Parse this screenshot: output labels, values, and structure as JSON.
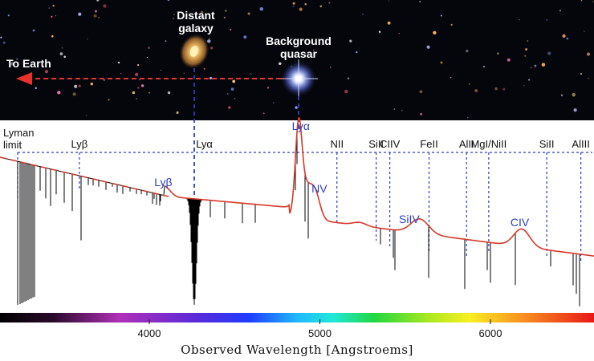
{
  "image_labels": {
    "to_earth": "To Earth",
    "galaxy_line1": "Distant",
    "galaxy_line2": "galaxy",
    "quasar_line1": "Background",
    "quasar_line2": "quasar"
  },
  "absorption_labels": [
    {
      "text": "Lyman",
      "wavelength": 3220
    },
    {
      "text": "limit",
      "wavelength": 3220
    },
    {
      "text": "Lyβ",
      "wavelength": 3590
    },
    {
      "text": "Lyα",
      "wavelength": 4255
    },
    {
      "text": "NII",
      "wavelength": 5100
    },
    {
      "text": "SiII",
      "wavelength": 5330
    },
    {
      "text": "CIIV",
      "wavelength": 5410
    },
    {
      "text": "FeII",
      "wavelength": 5640
    },
    {
      "text": "AlII",
      "wavelength": 5860
    },
    {
      "text": "MgI/NiII",
      "wavelength": 5990
    },
    {
      "text": "SiII",
      "wavelength": 6330
    },
    {
      "text": "AlIII",
      "wavelength": 6530
    }
  ],
  "emission_labels": [
    {
      "text": "Lyβ",
      "wavelength": 4110
    },
    {
      "text": "Lyα",
      "wavelength": 4860
    },
    {
      "text": "NV",
      "wavelength": 4950
    },
    {
      "text": "SiIV",
      "wavelength": 5590
    },
    {
      "text": "CIV",
      "wavelength": 6200
    }
  ],
  "axis": {
    "xlabel": "Observed Wavelength [Angstroems]",
    "xmin": 3200,
    "xmax": 6600,
    "ticks": [
      4000,
      5000,
      6000
    ]
  },
  "colors": {
    "spectrum": "#000000",
    "continuum_fit": "#d83a2a",
    "marker_lines": "#2a3fbf",
    "arrow": "#e8312b"
  }
}
